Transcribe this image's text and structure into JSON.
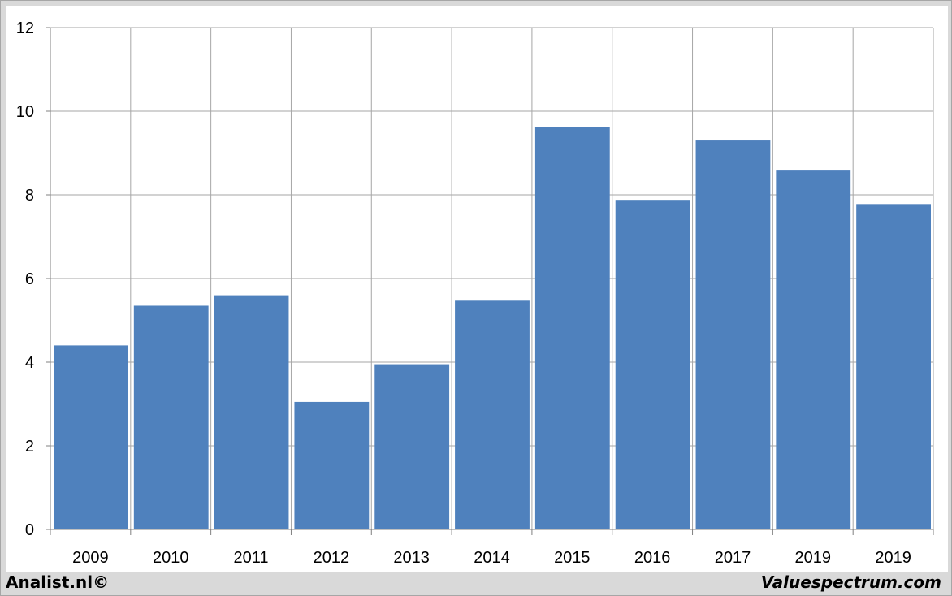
{
  "chart_data": {
    "type": "bar",
    "categories": [
      "2009",
      "2010",
      "2011",
      "2012",
      "2013",
      "2014",
      "2015",
      "2016",
      "2017",
      "2019",
      "2019"
    ],
    "values": [
      4.4,
      5.35,
      5.6,
      3.05,
      3.95,
      5.47,
      9.63,
      7.88,
      9.3,
      8.6,
      7.78
    ],
    "title": "",
    "xlabel": "",
    "ylabel": "",
    "ylim": [
      0,
      12
    ],
    "yticks": [
      "0",
      "2",
      "4",
      "6",
      "8",
      "10",
      "12"
    ],
    "grid": true,
    "bar_color": "#4f81bd",
    "grid_color": "#a6a6a6"
  },
  "footer": {
    "left": "Analist.nl©",
    "right": "Valuespectrum.com"
  }
}
